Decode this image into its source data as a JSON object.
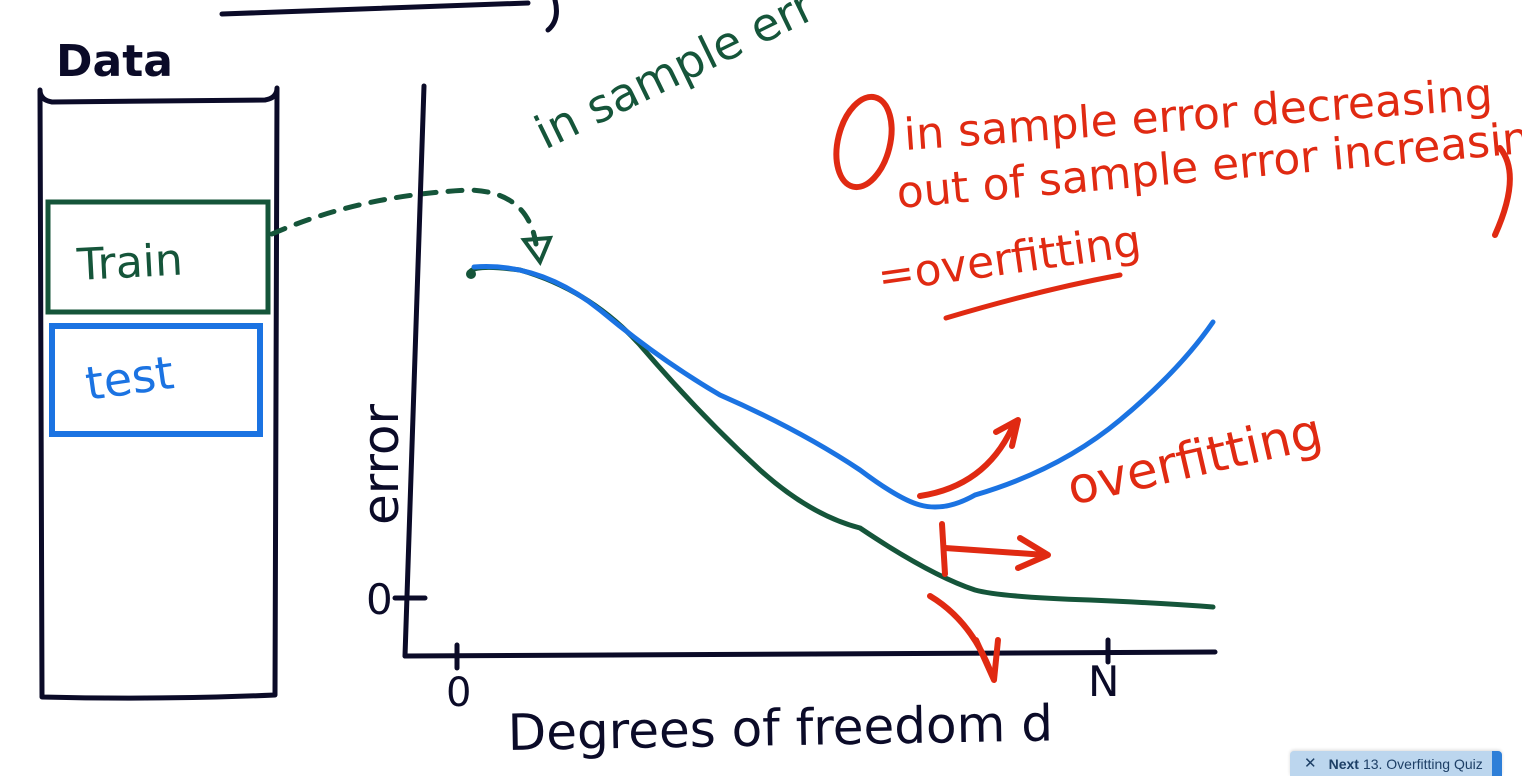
{
  "colors": {
    "ink": "#0b0b28",
    "green": "#15553a",
    "blue": "#1b73e2",
    "red": "#e02a12",
    "toast_bg": "#bcd6ee"
  },
  "labels": {
    "data_title": "Data",
    "train": "Train",
    "test": "test",
    "in_sample_note": "in sample err",
    "y_axis": "error",
    "y_zero": "0",
    "x_zero": "0",
    "x_n": "N",
    "x_axis": "Degrees of freedom d",
    "red_line1": "in sample error decreasing",
    "red_line2": "out of sample error increasing",
    "red_line3": "=overfitting",
    "overfitting": "overfitting"
  },
  "toast": {
    "close_icon": "close-icon",
    "close_glyph": "✕",
    "next": "Next",
    "title": "13. Overfitting Quiz"
  }
}
